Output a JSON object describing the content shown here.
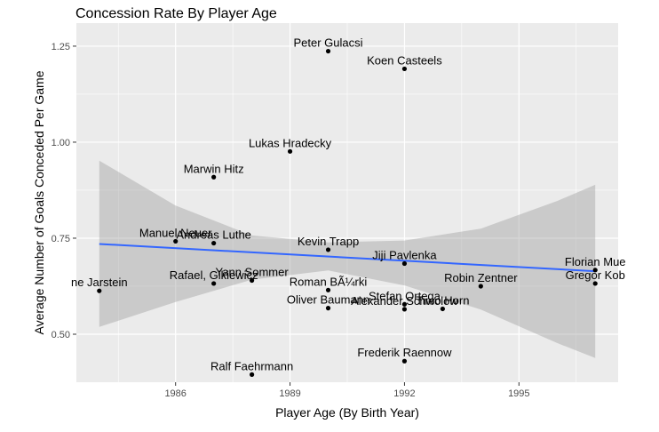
{
  "chart_data": {
    "type": "scatter",
    "title": "Concession Rate By Player Age",
    "xlabel": "Player Age (By Birth Year)",
    "ylabel": "Average Number of Goals Conceded Per Game",
    "xlim": [
      1983.4,
      1997.6
    ],
    "ylim": [
      0.375,
      1.31
    ],
    "x_ticks": [
      1986,
      1989,
      1992,
      1995
    ],
    "y_ticks": [
      0.5,
      0.75,
      1.0,
      1.25
    ],
    "x_tick_labels": [
      "1986",
      "1989",
      "1992",
      "1995"
    ],
    "y_tick_labels": [
      "0.50",
      "0.75",
      "1.00",
      "1.25"
    ],
    "grid": true,
    "colors": {
      "panel_bg": "#ebebeb",
      "grid": "#ffffff",
      "point": "#000000",
      "trend_line": "#3366ff",
      "confidence_band": "#999999"
    },
    "points": [
      {
        "label": "Peter Gulacsi",
        "x": 1990,
        "y": 1.237
      },
      {
        "label": "Koen Casteels",
        "x": 1992,
        "y": 1.191
      },
      {
        "label": "Lukas Hradecky",
        "x": 1989,
        "y": 0.976
      },
      {
        "label": "Marwin Hitz",
        "x": 1987,
        "y": 0.909
      },
      {
        "label": "Manuel Neuer",
        "x": 1986,
        "y": 0.742
      },
      {
        "label": "Andreas Luthe",
        "x": 1987,
        "y": 0.737
      },
      {
        "label": "Kevin Trapp",
        "x": 1990,
        "y": 0.72
      },
      {
        "label": "Jiji Pavlenka",
        "x": 1992,
        "y": 0.684
      },
      {
        "label": "Florian Mue",
        "x": 1997,
        "y": 0.667
      },
      {
        "label": "Gregor Kob",
        "x": 1997,
        "y": 0.632
      },
      {
        "label": "ne Jarstein",
        "x": 1984,
        "y": 0.613
      },
      {
        "label": "Yann Sommer",
        "x": 1988,
        "y": 0.64
      },
      {
        "label": "Rafael, Gikiewicz",
        "x": 1987,
        "y": 0.632
      },
      {
        "label": "Roman BÃ¼rki",
        "x": 1990,
        "y": 0.615
      },
      {
        "label": "Robin Zentner",
        "x": 1994,
        "y": 0.625
      },
      {
        "label": "Stefan Ortega",
        "x": 1992,
        "y": 0.578
      },
      {
        "label": "Oliver Baumann",
        "x": 1990,
        "y": 0.568
      },
      {
        "label": "Alexander Schwolow",
        "x": 1992,
        "y": 0.565
      },
      {
        "label": "Timo Horn",
        "x": 1993,
        "y": 0.566
      },
      {
        "label": "Frederik Raennow",
        "x": 1992,
        "y": 0.43
      },
      {
        "label": "Ralf Faehrmann",
        "x": 1988,
        "y": 0.395
      }
    ],
    "trend_line": {
      "x": [
        1984,
        1997
      ],
      "y": [
        0.735,
        0.664
      ]
    },
    "confidence_band": {
      "x": [
        1984,
        1986,
        1988,
        1990,
        1992,
        1994,
        1996,
        1997
      ],
      "upper": [
        0.952,
        0.835,
        0.757,
        0.739,
        0.744,
        0.775,
        0.847,
        0.889
      ],
      "lower": [
        0.519,
        0.584,
        0.642,
        0.666,
        0.627,
        0.564,
        0.477,
        0.438
      ]
    }
  }
}
